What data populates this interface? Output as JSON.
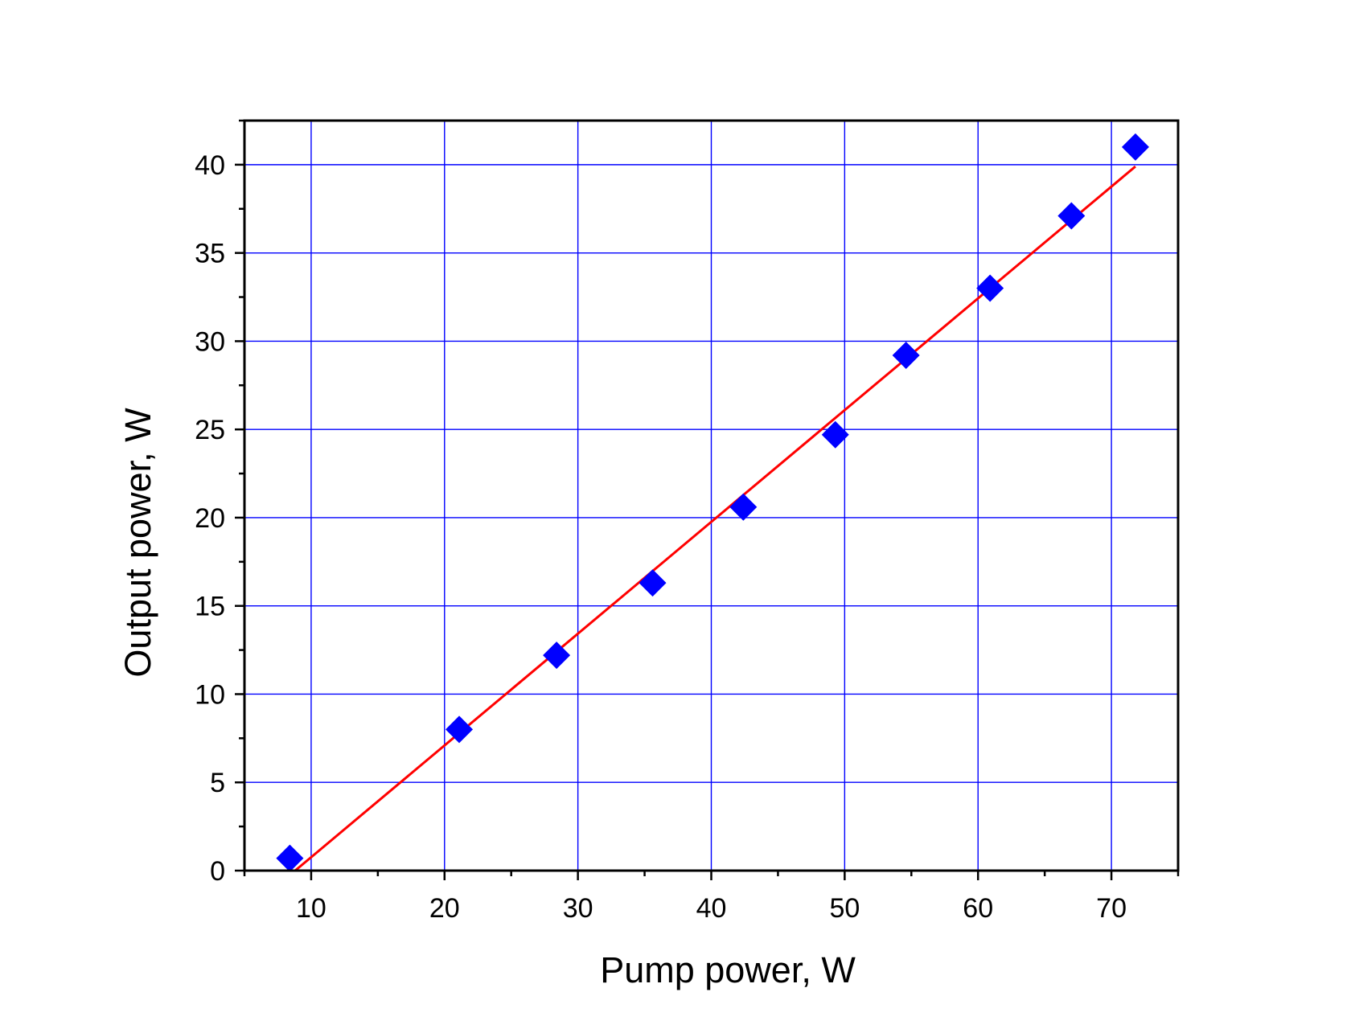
{
  "chart_data": {
    "type": "scatter",
    "xlabel": "Pump power, W",
    "ylabel": "Output power, W",
    "xlim": [
      5,
      75
    ],
    "ylim": [
      0,
      42.5
    ],
    "x_ticks": [
      10,
      20,
      30,
      40,
      50,
      60,
      70
    ],
    "y_ticks": [
      0,
      5,
      10,
      15,
      20,
      25,
      30,
      35,
      40
    ],
    "x_minor_step": 5,
    "y_minor_step": 2.5,
    "grid": true,
    "series": [
      {
        "type": "scatter",
        "marker": "diamond",
        "color": "#0000ff",
        "points": [
          {
            "x": 8.4,
            "y": 0.7
          },
          {
            "x": 21.1,
            "y": 8.0
          },
          {
            "x": 28.4,
            "y": 12.2
          },
          {
            "x": 35.6,
            "y": 16.3
          },
          {
            "x": 42.4,
            "y": 20.6
          },
          {
            "x": 49.3,
            "y": 24.7
          },
          {
            "x": 54.6,
            "y": 29.2
          },
          {
            "x": 60.9,
            "y": 33.0
          },
          {
            "x": 67.0,
            "y": 37.1
          },
          {
            "x": 71.8,
            "y": 41.0
          }
        ]
      },
      {
        "type": "line",
        "color": "#ff0000",
        "points": [
          {
            "x": 8.8,
            "y": 0.0
          },
          {
            "x": 71.8,
            "y": 39.9
          }
        ]
      }
    ],
    "colors": {
      "grid": "#0000ff",
      "axes": "#000000"
    }
  }
}
